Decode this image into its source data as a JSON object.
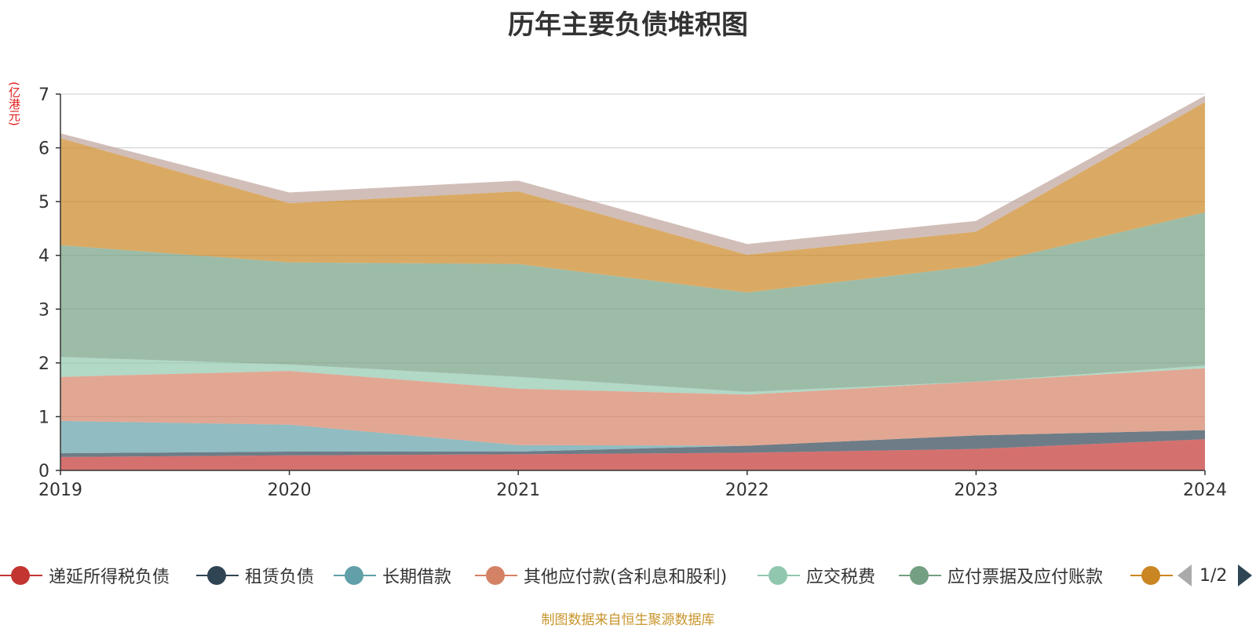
{
  "chart_data": {
    "type": "area",
    "stacked": true,
    "title": "历年主要负债堆积图",
    "unit_label": "(亿港元)",
    "x": [
      "2019",
      "2020",
      "2021",
      "2022",
      "2023",
      "2024"
    ],
    "ylim": [
      0,
      7
    ],
    "yticks": [
      0,
      1,
      2,
      3,
      4,
      5,
      6,
      7
    ],
    "grid": true,
    "series": [
      {
        "name": "递延所得税负债",
        "color": "#c23531",
        "values": [
          0.25,
          0.28,
          0.3,
          0.33,
          0.4,
          0.58
        ]
      },
      {
        "name": "租赁负债",
        "color": "#2f4554",
        "values": [
          0.07,
          0.07,
          0.05,
          0.13,
          0.25,
          0.17
        ]
      },
      {
        "name": "长期借款",
        "color": "#61a0a8",
        "values": [
          0.6,
          0.5,
          0.12,
          0.0,
          0.0,
          0.0
        ]
      },
      {
        "name": "其他应付款(含利息和股利)",
        "color": "#d48265",
        "values": [
          0.82,
          1.0,
          1.05,
          0.95,
          1.0,
          1.15
        ]
      },
      {
        "name": "应交税费",
        "color": "#91c7ae",
        "values": [
          0.37,
          0.12,
          0.22,
          0.05,
          0.0,
          0.05
        ]
      },
      {
        "name": "应付票据及应付账款",
        "color": "#749f83",
        "values": [
          2.08,
          1.9,
          2.1,
          1.85,
          2.15,
          2.85
        ]
      },
      {
        "name": "",
        "color": "#ca8622",
        "values": [
          1.99,
          1.1,
          1.35,
          0.7,
          0.64,
          2.05
        ]
      },
      {
        "name": "",
        "color": "#bda29a",
        "values": [
          0.09,
          0.2,
          0.2,
          0.2,
          0.2,
          0.12
        ]
      }
    ]
  },
  "legend": {
    "items": [
      {
        "label": "递延所得税负债",
        "color": "#c23531"
      },
      {
        "label": "租赁负债",
        "color": "#2f4554"
      },
      {
        "label": "长期借款",
        "color": "#61a0a8"
      },
      {
        "label": "其他应付款(含利息和股利)",
        "color": "#d48265"
      },
      {
        "label": "应交税费",
        "color": "#91c7ae"
      },
      {
        "label": "应付票据及应付账款",
        "color": "#749f83"
      },
      {
        "label": "",
        "color": "#ca8622"
      }
    ],
    "page": "1/2"
  },
  "source": "制图数据来自恒生聚源数据库"
}
